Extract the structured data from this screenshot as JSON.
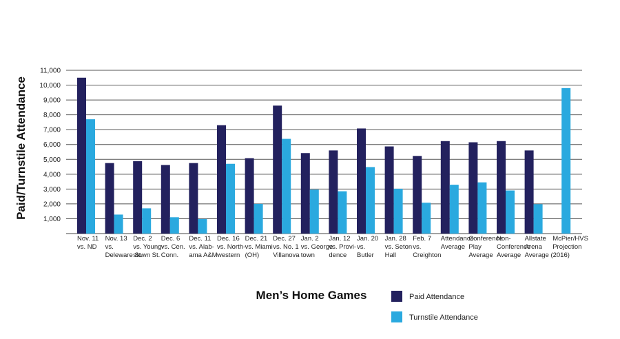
{
  "chart_data": {
    "type": "bar",
    "ylabel": "Paid/Turnstile Attendance",
    "xlabel": "Men’s Home Games",
    "ylim": [
      0,
      11000
    ],
    "yticks": [
      1000,
      2000,
      3000,
      4000,
      5000,
      6000,
      7000,
      8000,
      9000,
      10000,
      11000
    ],
    "ytick_labels": [
      "1,000",
      "2,000",
      "3,000",
      "4,000",
      "5,000",
      "6,000",
      "7,000",
      "8,000",
      "9,000",
      "10,000",
      "11,000"
    ],
    "grid": true,
    "legend_position": "bottom-right",
    "categories": [
      [
        "Nov. 11",
        "vs. ND"
      ],
      [
        "Nov. 13",
        "vs.",
        "Deleware St."
      ],
      [
        "Dec. 2",
        "vs. Young-",
        "stown St."
      ],
      [
        "Dec. 6",
        "vs. Cen.",
        "Conn."
      ],
      [
        "Dec. 11",
        "vs. Alab-",
        "ama A&M"
      ],
      [
        "Dec. 16",
        "vs. North-",
        "western"
      ],
      [
        "Dec. 21",
        "vs. Miami",
        "(OH)"
      ],
      [
        "Dec. 27",
        "vs. No. 1",
        "Villanova"
      ],
      [
        "Jan. 2",
        "vs. George",
        "town"
      ],
      [
        "Jan. 12",
        "vs. Provi-",
        "dence"
      ],
      [
        "Jan. 20",
        "vs.",
        "Butler"
      ],
      [
        "Jan. 28",
        "vs. Seton",
        "Hall"
      ],
      [
        "Feb. 7",
        "vs.",
        "Creighton"
      ],
      [
        "Attendance",
        "Average"
      ],
      [
        "Conference",
        "Play",
        "Average"
      ],
      [
        "Non-",
        "Conference",
        "Average"
      ],
      [
        "Allstate",
        "Arena",
        "Average (2016)"
      ],
      [
        "McPier/HVS",
        "Projection"
      ]
    ],
    "series": [
      {
        "name": "Paid Attendance",
        "color": "#23215e",
        "values": [
          10500,
          4750,
          4880,
          4620,
          4750,
          7300,
          5080,
          8620,
          5420,
          5600,
          7080,
          5870,
          5230,
          6230,
          6150,
          6230,
          5600,
          null
        ]
      },
      {
        "name": "Turnstile Attendance",
        "color": "#2aa9df",
        "values": [
          7700,
          1280,
          1700,
          1100,
          980,
          4700,
          2000,
          6380,
          2960,
          2850,
          4480,
          3020,
          2080,
          3290,
          3450,
          2900,
          1980,
          9800
        ]
      }
    ]
  }
}
